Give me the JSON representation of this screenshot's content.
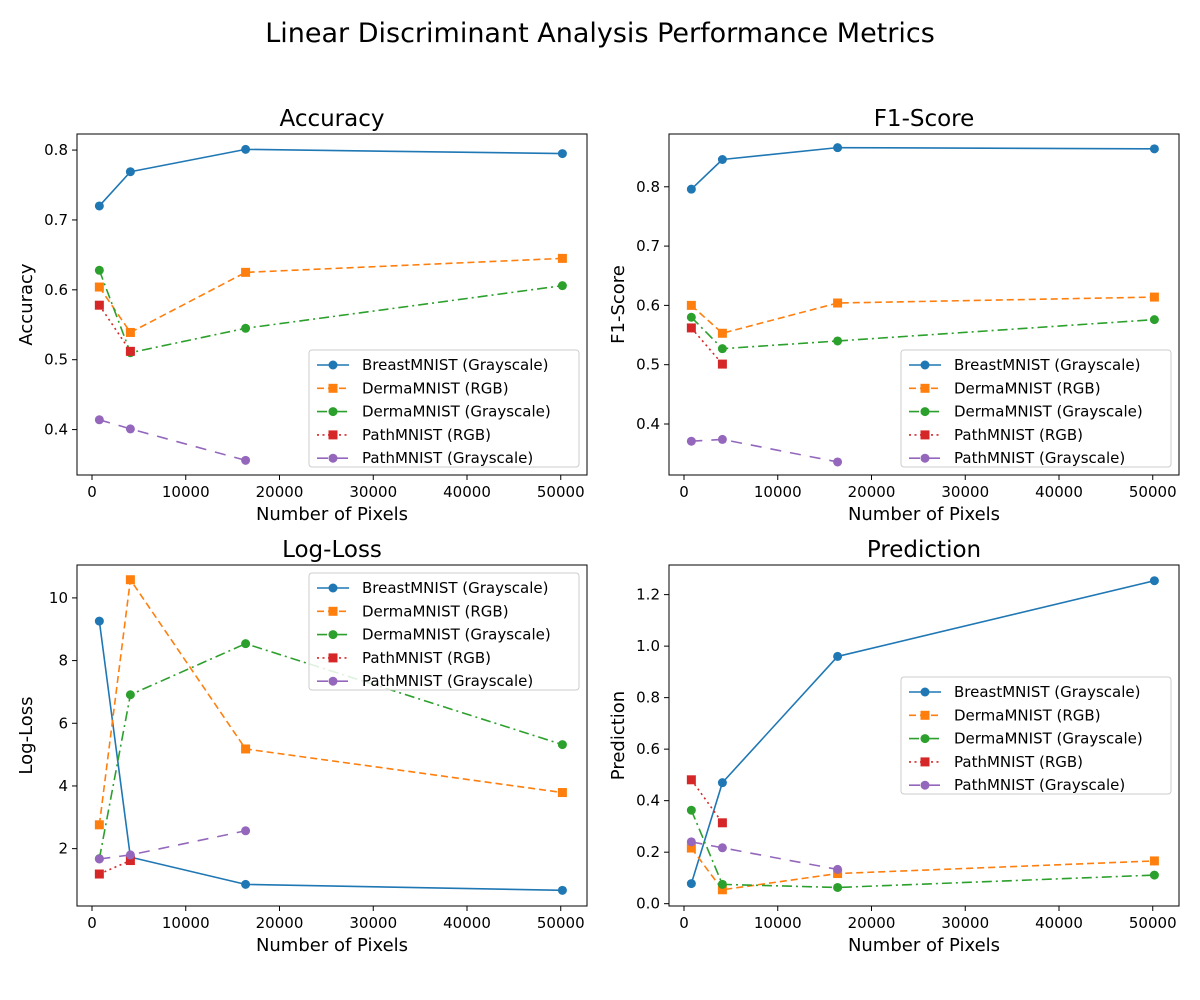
{
  "figure": {
    "title": "Linear Discriminant Analysis Performance Metrics",
    "colors": {
      "blue": "#1f77b4",
      "orange": "#ff7f0e",
      "green": "#2ca02c",
      "red": "#d62728",
      "purple": "#9467bd"
    }
  },
  "chart_data": [
    {
      "type": "line",
      "title": "Accuracy",
      "xlabel": "Number of Pixels",
      "ylabel": "Accuracy",
      "xlim": [
        -1600,
        52800
      ],
      "ylim": [
        0.335,
        0.823
      ],
      "xticks": [
        0,
        10000,
        20000,
        30000,
        40000,
        50000
      ],
      "xtick_labels": [
        "0",
        "10000",
        "20000",
        "30000",
        "40000",
        "50000"
      ],
      "yticks": [
        0.4,
        0.5,
        0.6,
        0.7,
        0.8
      ],
      "ytick_labels": [
        "0.4",
        "0.5",
        "0.6",
        "0.7",
        "0.8"
      ],
      "grid": false,
      "legend_position": "lower right",
      "series": [
        {
          "name": "BreastMNIST (Grayscale)",
          "color": "#1f77b4",
          "linestyle": "solid",
          "marker": "circle",
          "x": [
            784,
            4096,
            16384,
            50176
          ],
          "y": [
            0.72,
            0.769,
            0.801,
            0.795
          ]
        },
        {
          "name": "DermaMNIST (RGB)",
          "color": "#ff7f0e",
          "linestyle": "dashed",
          "marker": "square",
          "x": [
            784,
            4096,
            16384,
            50176
          ],
          "y": [
            0.604,
            0.539,
            0.625,
            0.645
          ]
        },
        {
          "name": "DermaMNIST (Grayscale)",
          "color": "#2ca02c",
          "linestyle": "dashdot",
          "marker": "circle",
          "x": [
            784,
            4096,
            16384,
            50176
          ],
          "y": [
            0.628,
            0.51,
            0.545,
            0.606
          ]
        },
        {
          "name": "PathMNIST (RGB)",
          "color": "#d62728",
          "linestyle": "dotted",
          "marker": "square",
          "x": [
            784,
            4096
          ],
          "y": [
            0.578,
            0.512
          ]
        },
        {
          "name": "PathMNIST (Grayscale)",
          "color": "#9467bd",
          "linestyle": "loosedash",
          "marker": "circle",
          "x": [
            784,
            4096,
            16384
          ],
          "y": [
            0.414,
            0.401,
            0.356
          ]
        }
      ]
    },
    {
      "type": "line",
      "title": "F1-Score",
      "xlabel": "Number of Pixels",
      "ylabel": "F1-Score",
      "xlim": [
        -1600,
        52800
      ],
      "ylim": [
        0.314,
        0.889
      ],
      "xticks": [
        0,
        10000,
        20000,
        30000,
        40000,
        50000
      ],
      "xtick_labels": [
        "0",
        "10000",
        "20000",
        "30000",
        "40000",
        "50000"
      ],
      "yticks": [
        0.4,
        0.5,
        0.6,
        0.7,
        0.8
      ],
      "ytick_labels": [
        "0.4",
        "0.5",
        "0.6",
        "0.7",
        "0.8"
      ],
      "grid": false,
      "legend_position": "lower right",
      "series": [
        {
          "name": "BreastMNIST (Grayscale)",
          "color": "#1f77b4",
          "linestyle": "solid",
          "marker": "circle",
          "x": [
            784,
            4096,
            16384,
            50176
          ],
          "y": [
            0.796,
            0.846,
            0.866,
            0.864
          ]
        },
        {
          "name": "DermaMNIST (RGB)",
          "color": "#ff7f0e",
          "linestyle": "dashed",
          "marker": "square",
          "x": [
            784,
            4096,
            16384,
            50176
          ],
          "y": [
            0.6,
            0.553,
            0.604,
            0.614
          ]
        },
        {
          "name": "DermaMNIST (Grayscale)",
          "color": "#2ca02c",
          "linestyle": "dashdot",
          "marker": "circle",
          "x": [
            784,
            4096,
            16384,
            50176
          ],
          "y": [
            0.58,
            0.527,
            0.54,
            0.576
          ]
        },
        {
          "name": "PathMNIST (RGB)",
          "color": "#d62728",
          "linestyle": "dotted",
          "marker": "square",
          "x": [
            784,
            4096
          ],
          "y": [
            0.562,
            0.501
          ]
        },
        {
          "name": "PathMNIST (Grayscale)",
          "color": "#9467bd",
          "linestyle": "loosedash",
          "marker": "circle",
          "x": [
            784,
            4096,
            16384
          ],
          "y": [
            0.371,
            0.374,
            0.336
          ]
        }
      ]
    },
    {
      "type": "line",
      "title": "Log-Loss",
      "xlabel": "Number of Pixels",
      "ylabel": "Log-Loss",
      "xlim": [
        -1600,
        52800
      ],
      "ylim": [
        0.17,
        11.05
      ],
      "xticks": [
        0,
        10000,
        20000,
        30000,
        40000,
        50000
      ],
      "xtick_labels": [
        "0",
        "10000",
        "20000",
        "30000",
        "40000",
        "50000"
      ],
      "yticks": [
        2,
        4,
        6,
        8,
        10
      ],
      "ytick_labels": [
        "2",
        "4",
        "6",
        "8",
        "10"
      ],
      "grid": false,
      "legend_position": "upper right",
      "series": [
        {
          "name": "BreastMNIST (Grayscale)",
          "color": "#1f77b4",
          "linestyle": "solid",
          "marker": "circle",
          "x": [
            784,
            4096,
            16384,
            50176
          ],
          "y": [
            9.26,
            1.73,
            0.86,
            0.67
          ]
        },
        {
          "name": "DermaMNIST (RGB)",
          "color": "#ff7f0e",
          "linestyle": "dashed",
          "marker": "square",
          "x": [
            784,
            4096,
            16384,
            50176
          ],
          "y": [
            2.76,
            10.58,
            5.18,
            3.79
          ]
        },
        {
          "name": "DermaMNIST (Grayscale)",
          "color": "#2ca02c",
          "linestyle": "dashdot",
          "marker": "circle",
          "x": [
            784,
            4096,
            16384,
            50176
          ],
          "y": [
            1.68,
            6.91,
            8.54,
            5.32
          ]
        },
        {
          "name": "PathMNIST (RGB)",
          "color": "#d62728",
          "linestyle": "dotted",
          "marker": "square",
          "x": [
            784,
            4096
          ],
          "y": [
            1.19,
            1.62
          ]
        },
        {
          "name": "PathMNIST (Grayscale)",
          "color": "#9467bd",
          "linestyle": "loosedash",
          "marker": "circle",
          "x": [
            784,
            4096,
            16384
          ],
          "y": [
            1.67,
            1.8,
            2.57
          ]
        }
      ]
    },
    {
      "type": "line",
      "title": "Prediction",
      "xlabel": "Number of Pixels",
      "ylabel": "Prediction",
      "xlim": [
        -1600,
        52800
      ],
      "ylim": [
        -0.009,
        1.315
      ],
      "xticks": [
        0,
        10000,
        20000,
        30000,
        40000,
        50000
      ],
      "xtick_labels": [
        "0",
        "10000",
        "20000",
        "30000",
        "40000",
        "50000"
      ],
      "yticks": [
        0.0,
        0.2,
        0.4,
        0.6,
        0.8,
        1.0,
        1.2
      ],
      "ytick_labels": [
        "0.0",
        "0.2",
        "0.4",
        "0.6",
        "0.8",
        "1.0",
        "1.2"
      ],
      "grid": false,
      "legend_position": "center right",
      "series": [
        {
          "name": "BreastMNIST (Grayscale)",
          "color": "#1f77b4",
          "linestyle": "solid",
          "marker": "circle",
          "x": [
            784,
            4096,
            16384,
            50176
          ],
          "y": [
            0.078,
            0.47,
            0.96,
            1.254
          ]
        },
        {
          "name": "DermaMNIST (RGB)",
          "color": "#ff7f0e",
          "linestyle": "dashed",
          "marker": "square",
          "x": [
            784,
            4096,
            16384,
            50176
          ],
          "y": [
            0.216,
            0.054,
            0.117,
            0.166
          ]
        },
        {
          "name": "DermaMNIST (Grayscale)",
          "color": "#2ca02c",
          "linestyle": "dashdot",
          "marker": "circle",
          "x": [
            784,
            4096,
            16384,
            50176
          ],
          "y": [
            0.363,
            0.075,
            0.063,
            0.111
          ]
        },
        {
          "name": "PathMNIST (RGB)",
          "color": "#d62728",
          "linestyle": "dotted",
          "marker": "square",
          "x": [
            784,
            4096
          ],
          "y": [
            0.481,
            0.314
          ]
        },
        {
          "name": "PathMNIST (Grayscale)",
          "color": "#9467bd",
          "linestyle": "loosedash",
          "marker": "circle",
          "x": [
            784,
            4096,
            16384
          ],
          "y": [
            0.24,
            0.217,
            0.133
          ]
        }
      ]
    }
  ]
}
